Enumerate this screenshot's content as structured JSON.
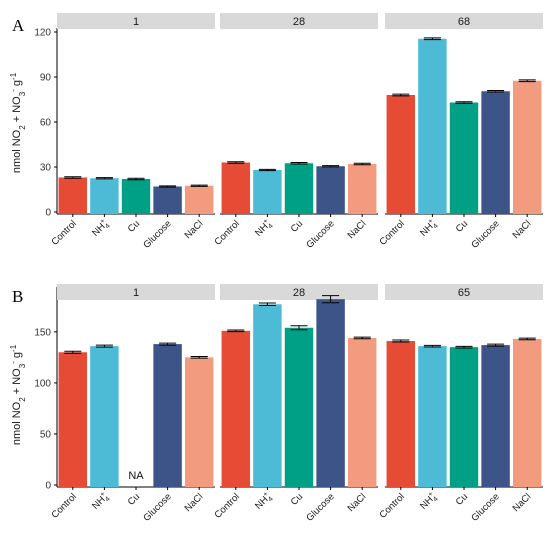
{
  "colors": {
    "Control": "#e64b35",
    "NH4": "#4dbbd5",
    "Cu": "#00a087",
    "Glucose": "#3c5488",
    "NaCl": "#f39b7f",
    "strip": "#d9d9d9",
    "axis": "#000000"
  },
  "ylabel": {
    "main": "nmol NO",
    "sub2": "2",
    "plus": " + NO",
    "sub3": "3",
    "minus": "-",
    "unit": " g",
    "sup": "-1"
  },
  "nh4": {
    "base": "NH",
    "sup": "+",
    "sub": "4"
  },
  "chart_data": [
    {
      "type": "bar",
      "panel_label": "A",
      "facet_variable": "day",
      "categories": [
        "Control",
        "NH4+",
        "Cu",
        "Glucose",
        "NaCl"
      ],
      "ylim": [
        0,
        120
      ],
      "yticks": [
        0,
        30,
        60,
        90,
        120
      ],
      "facets": [
        {
          "label": "1",
          "values": [
            23,
            22.5,
            22,
            17,
            17.5
          ],
          "errors": [
            0.5,
            0.4,
            0.5,
            0.4,
            0.4
          ]
        },
        {
          "label": "28",
          "values": [
            33,
            28,
            32.5,
            30.5,
            32
          ],
          "errors": [
            0.5,
            0.4,
            0.5,
            0.4,
            0.5
          ]
        },
        {
          "label": "68",
          "values": [
            78,
            115.5,
            73,
            80.5,
            87.5
          ],
          "errors": [
            0.6,
            0.6,
            0.5,
            0.5,
            0.6
          ]
        }
      ]
    },
    {
      "type": "bar",
      "panel_label": "B",
      "facet_variable": "day",
      "categories": [
        "Control",
        "NH4+",
        "Cu",
        "Glucose",
        "NaCl"
      ],
      "ylim": [
        0,
        190
      ],
      "yticks": [
        0,
        50,
        100,
        150
      ],
      "missing_label": "NA",
      "facets": [
        {
          "label": "1",
          "values": [
            130,
            136,
            null,
            138,
            125
          ],
          "errors": [
            1.0,
            1.0,
            null,
            1.0,
            0.8
          ]
        },
        {
          "label": "28",
          "values": [
            151,
            177,
            154,
            182,
            144
          ],
          "errors": [
            0.8,
            1.2,
            2.0,
            3.5,
            0.8
          ]
        },
        {
          "label": "65",
          "values": [
            141,
            136,
            135,
            137,
            143
          ],
          "errors": [
            1.0,
            0.8,
            0.8,
            1.0,
            0.8
          ]
        }
      ]
    }
  ]
}
